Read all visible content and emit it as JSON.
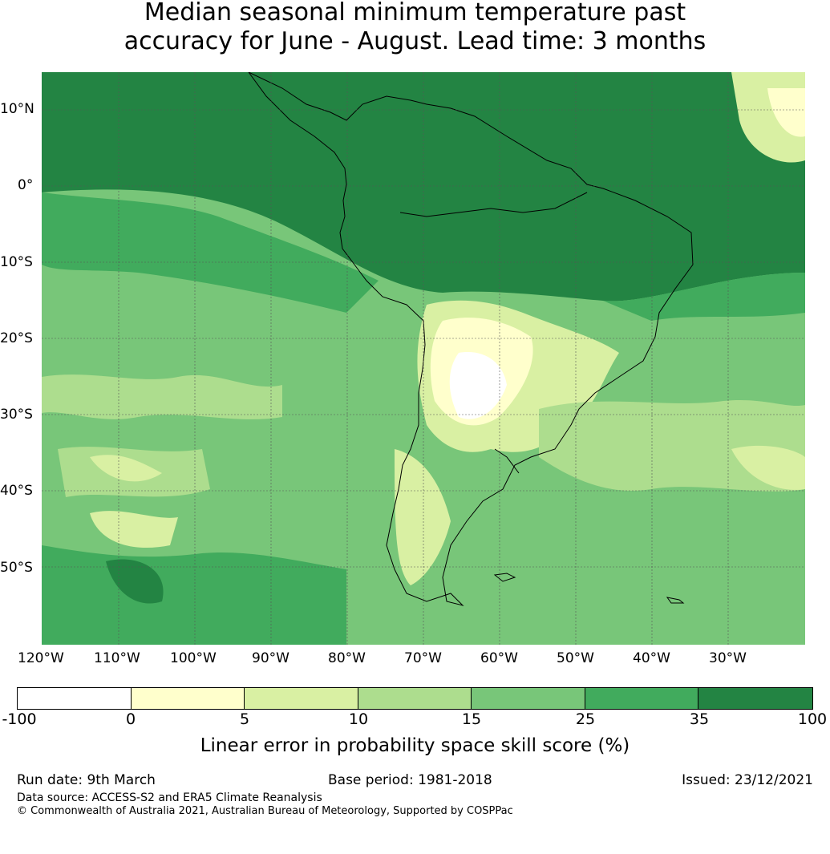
{
  "title": {
    "line1": "Median seasonal minimum temperature past",
    "line2": "accuracy for June - August. Lead time: 3 months"
  },
  "map": {
    "lat_labels": [
      "10°N",
      "0°",
      "10°S",
      "20°S",
      "30°S",
      "40°S",
      "50°S"
    ],
    "lon_labels": [
      "120°W",
      "110°W",
      "100°W",
      "90°W",
      "80°W",
      "70°W",
      "60°W",
      "50°W",
      "40°W",
      "30°W"
    ],
    "region": "South America and surrounding oceans"
  },
  "legend": {
    "ticks": [
      "-100",
      "0",
      "5",
      "10",
      "15",
      "25",
      "35",
      "100"
    ],
    "colors": [
      "#ffffff",
      "#ffffcc",
      "#d9f0a3",
      "#addd8e",
      "#78c679",
      "#41ab5d",
      "#238443"
    ],
    "label": "Linear error in probability space skill score (%)"
  },
  "footer": {
    "run_date": "Run date: 9th March",
    "base_period": "Base period: 1981-2018",
    "issued": "Issued: 23/12/2021",
    "data_source": "Data source: ACCESS-S2 and ERA5 Climate Reanalysis",
    "copyright": "© Commonwealth of Australia 2021, Australian Bureau of Meteorology, Supported by COSPPac"
  }
}
